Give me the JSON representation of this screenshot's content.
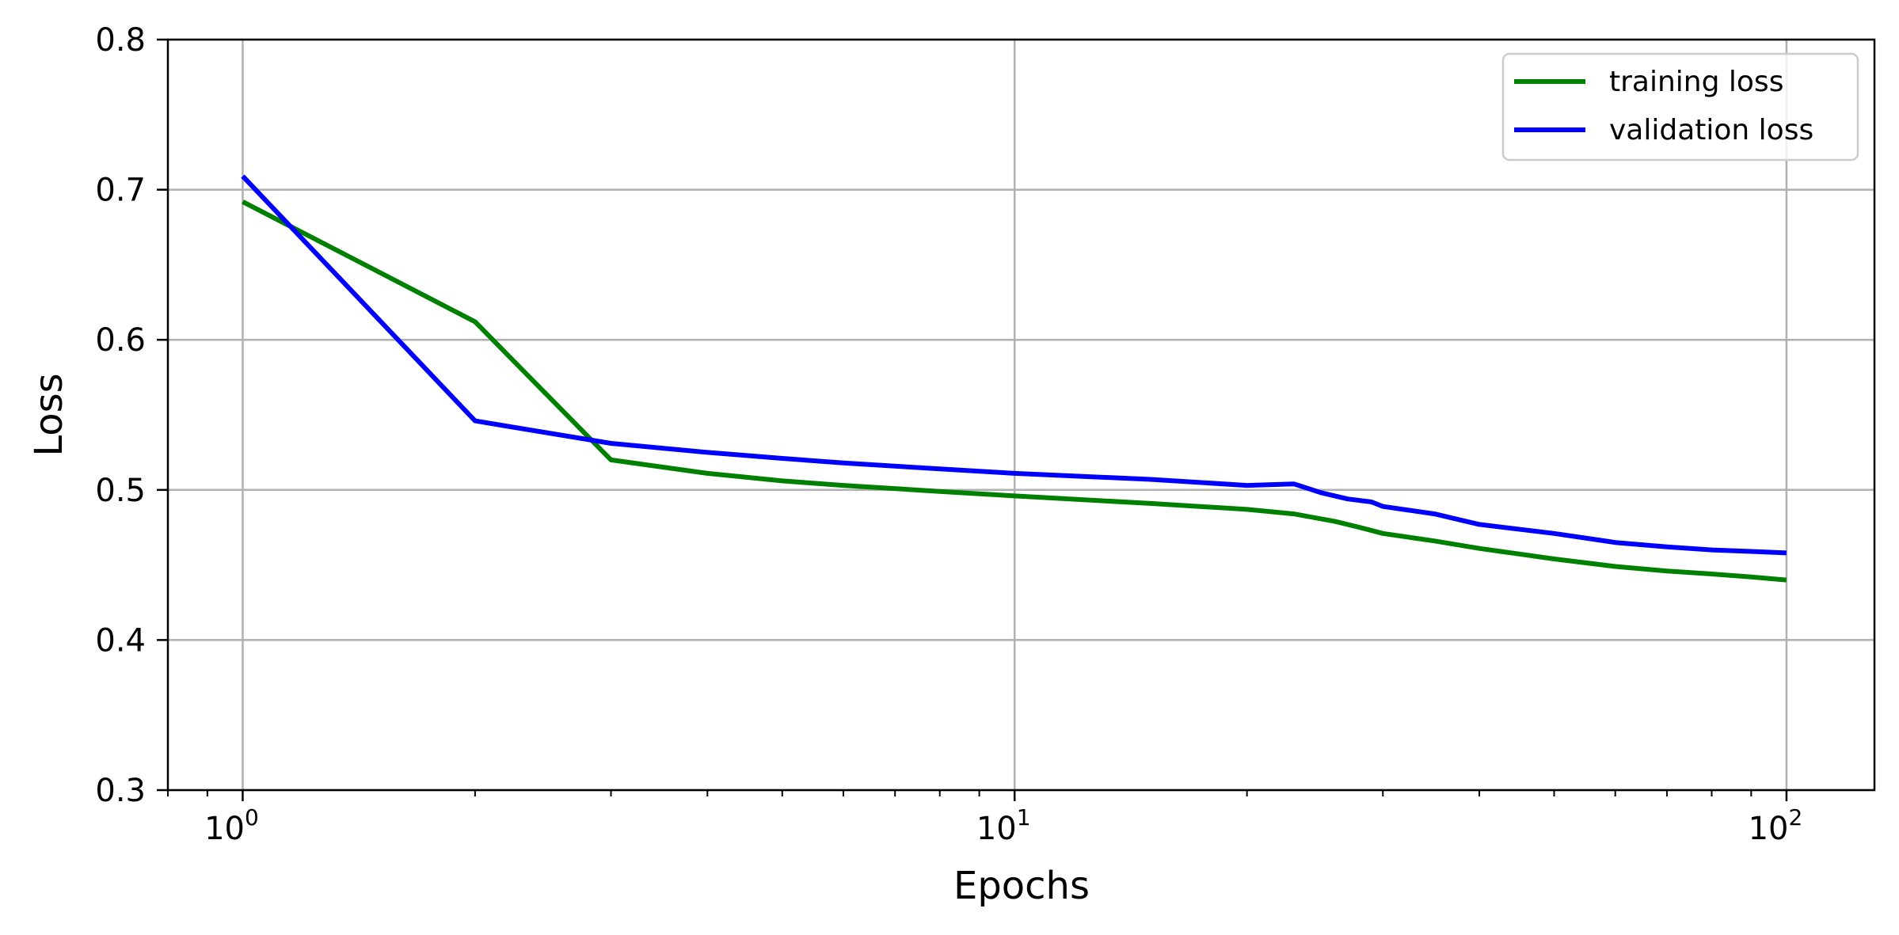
{
  "chart_data": {
    "type": "line",
    "xlabel": "Epochs",
    "ylabel": "Loss",
    "xscale": "log",
    "xlim": [
      0.8,
      130
    ],
    "ylim": [
      0.3,
      0.8
    ],
    "xticks": [
      {
        "value": 1,
        "base": "10",
        "exp": "0"
      },
      {
        "value": 10,
        "base": "10",
        "exp": "1"
      },
      {
        "value": 100,
        "base": "10",
        "exp": "2"
      }
    ],
    "yticks": [
      {
        "value": 0.3,
        "label": "0.3"
      },
      {
        "value": 0.4,
        "label": "0.4"
      },
      {
        "value": 0.5,
        "label": "0.5"
      },
      {
        "value": 0.6,
        "label": "0.6"
      },
      {
        "value": 0.7,
        "label": "0.7"
      },
      {
        "value": 0.8,
        "label": "0.8"
      }
    ],
    "grid": true,
    "legend": "top-right",
    "series": [
      {
        "name": "training loss",
        "color": "#008000",
        "x": [
          1,
          2,
          3,
          4,
          5,
          6,
          8,
          10,
          15,
          20,
          23,
          26,
          28,
          30,
          35,
          40,
          50,
          60,
          70,
          80,
          90,
          100
        ],
        "values": [
          0.692,
          0.612,
          0.52,
          0.511,
          0.506,
          0.503,
          0.499,
          0.496,
          0.491,
          0.487,
          0.484,
          0.479,
          0.475,
          0.471,
          0.466,
          0.461,
          0.454,
          0.449,
          0.446,
          0.444,
          0.442,
          0.44
        ]
      },
      {
        "name": "validation loss",
        "color": "#0000ff",
        "x": [
          1,
          2,
          3,
          4,
          5,
          6,
          8,
          10,
          15,
          20,
          23,
          25,
          27,
          29,
          30,
          35,
          40,
          50,
          60,
          70,
          80,
          90,
          100
        ],
        "values": [
          0.709,
          0.546,
          0.531,
          0.525,
          0.521,
          0.518,
          0.514,
          0.511,
          0.507,
          0.503,
          0.504,
          0.498,
          0.494,
          0.492,
          0.489,
          0.484,
          0.477,
          0.471,
          0.465,
          0.462,
          0.46,
          0.459,
          0.458
        ]
      }
    ]
  }
}
